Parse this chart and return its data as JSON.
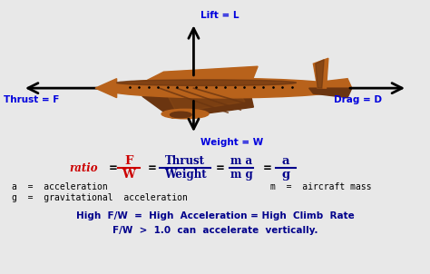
{
  "bg_color": "#e8e8e8",
  "blue": "#0000dd",
  "red": "#cc0000",
  "black": "#000000",
  "dark_blue": "#00008b",
  "plane_color": "#b8621b",
  "plane_dark": "#6b3510",
  "plane_mid": "#8b4a15",
  "lift_label": "Lift = L",
  "thrust_label": "Thrust = F",
  "drag_label": "Drag = D",
  "weight_label": "Weight = W",
  "a_def": "a  =  acceleration",
  "g_def": "g  =  gravitational  acceleration",
  "m_def": "m  =  aircraft mass",
  "high_fw": "High  F/W  =  High  Acceleration = High  Climb  Rate",
  "fw_gt": "F/W  >  1.0  can  accelerate  vertically."
}
